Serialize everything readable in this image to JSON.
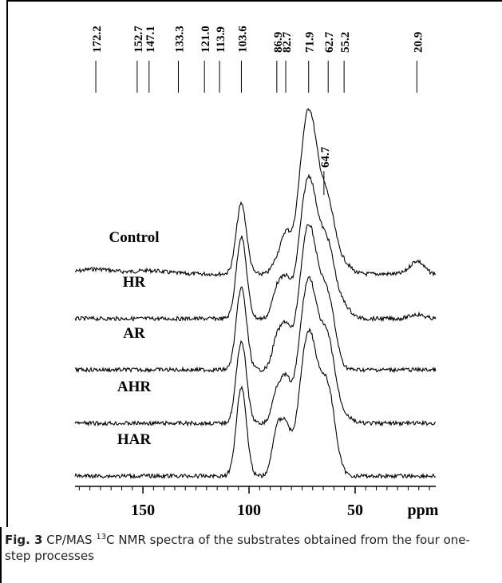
{
  "chart_data": {
    "type": "line",
    "title": "",
    "xlabel": "ppm",
    "x_reversed": true,
    "xlim": [
      182,
      12
    ],
    "x_ticks": [
      150,
      100,
      50
    ],
    "x_tick_labels": [
      "150",
      "100",
      "50"
    ],
    "grid": false,
    "legend": "none",
    "peak_labels": [
      "172.2",
      "152.7",
      "147.1",
      "133.3",
      "121.0",
      "113.9",
      "103.6",
      "86.9",
      "82.7",
      "71.9",
      "62.7",
      "55.2",
      "20.9"
    ],
    "peak_positions": [
      172.2,
      152.7,
      147.1,
      133.3,
      121.0,
      113.9,
      103.6,
      86.9,
      82.7,
      71.9,
      62.7,
      55.2,
      20.9
    ],
    "annotation": {
      "label": "64.7",
      "position": 64.7
    },
    "series": [
      {
        "name": "Control",
        "peaks": [
          {
            "x": 103.6,
            "h": 0.43
          },
          {
            "x": 86.9,
            "h": 0.08
          },
          {
            "x": 82.7,
            "h": 0.21
          },
          {
            "x": 71.9,
            "h": 1.0
          },
          {
            "x": 62.7,
            "h": 0.38
          },
          {
            "x": 55.2,
            "h": 0.06
          },
          {
            "x": 20.9,
            "h": 0.08
          },
          {
            "x": 172.2,
            "h": 0.03
          },
          {
            "x": 147.1,
            "h": 0.02
          }
        ]
      },
      {
        "name": "HR",
        "peaks": [
          {
            "x": 103.6,
            "h": 0.57
          },
          {
            "x": 86.9,
            "h": 0.2
          },
          {
            "x": 82.7,
            "h": 0.23
          },
          {
            "x": 71.9,
            "h": 0.98
          },
          {
            "x": 62.7,
            "h": 0.45
          },
          {
            "x": 55.2,
            "h": 0.08
          },
          {
            "x": 20.9,
            "h": 0.03
          }
        ]
      },
      {
        "name": "AR",
        "peaks": [
          {
            "x": 103.6,
            "h": 0.57
          },
          {
            "x": 86.9,
            "h": 0.21
          },
          {
            "x": 82.7,
            "h": 0.26
          },
          {
            "x": 71.9,
            "h": 1.0
          },
          {
            "x": 62.7,
            "h": 0.45
          }
        ]
      },
      {
        "name": "AHR",
        "peaks": [
          {
            "x": 103.6,
            "h": 0.57
          },
          {
            "x": 86.9,
            "h": 0.22
          },
          {
            "x": 82.7,
            "h": 0.26
          },
          {
            "x": 71.9,
            "h": 1.0
          },
          {
            "x": 62.7,
            "h": 0.52
          },
          {
            "x": 55.2,
            "h": 0.05
          }
        ]
      },
      {
        "name": "HAR",
        "peaks": [
          {
            "x": 103.6,
            "h": 0.62
          },
          {
            "x": 86.9,
            "h": 0.31
          },
          {
            "x": 82.7,
            "h": 0.3
          },
          {
            "x": 71.9,
            "h": 1.0
          },
          {
            "x": 62.7,
            "h": 0.55
          }
        ]
      }
    ]
  },
  "caption": {
    "fig_label": "Fig. 3",
    "text_before_sup": "CP/MAS ",
    "sup": "13",
    "text_after_sup": "C NMR spectra of the substrates obtained from the four one-step processes"
  }
}
